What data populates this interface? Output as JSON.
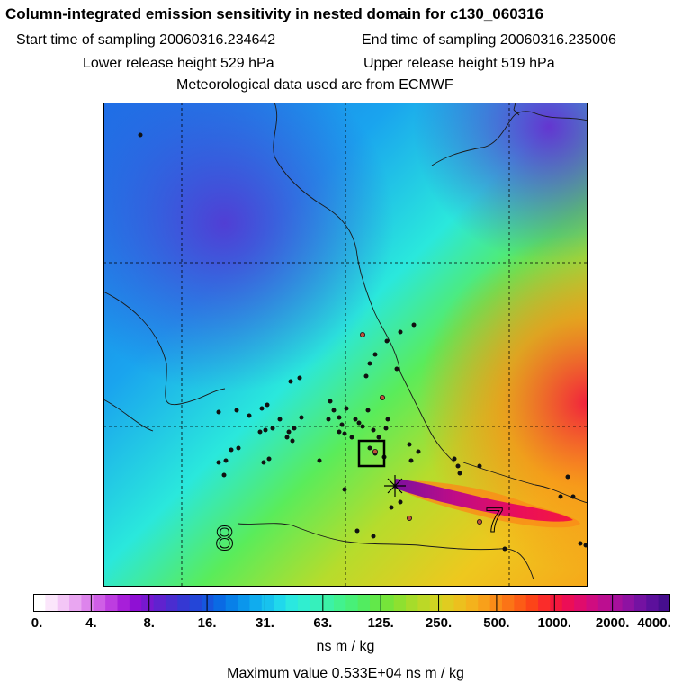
{
  "header": {
    "title": "Column-integrated emission sensitivity in nested domain for c130_060316",
    "start_label": "Start time of sampling 20060316.234642",
    "end_label": "End time of sampling 20060316.235006",
    "lower_label": "Lower release height  529 hPa",
    "upper_label": "Upper release height  519 hPa",
    "met_label": "Meteorological data used are from ECMWF"
  },
  "map": {
    "contour_labels": [
      "8",
      "7"
    ]
  },
  "colorbar": {
    "ticks": [
      "0.",
      "4.",
      "8.",
      "16.",
      "31.",
      "63.",
      "125.",
      "250.",
      "500.",
      "1000.",
      "2000.",
      "4000."
    ],
    "units": "ns m / kg",
    "max_value_text": "Maximum value  0.533E+04 ns m / kg",
    "colors": [
      "#ffffff",
      "#fbe6fb",
      "#f3c6f6",
      "#e9a6f1",
      "#dd84ec",
      "#cf5fe6",
      "#bd3de0",
      "#a71fd9",
      "#8f10d4",
      "#7718d0",
      "#6022cf",
      "#4a2dd0",
      "#3538d3",
      "#2446d8",
      "#1656de",
      "#0a6ae4",
      "#0880e8",
      "#0b96ec",
      "#10acee",
      "#18c2ee",
      "#20d8ec",
      "#2ae8e0",
      "#30eed0",
      "#36f0bc",
      "#3cf2a6",
      "#42f28e",
      "#48f078",
      "#52ec60",
      "#62e84a",
      "#76e43a",
      "#8ee030",
      "#a6dc2a",
      "#bcd826",
      "#d0d422",
      "#e0cc20",
      "#ecc01e",
      "#f4b21c",
      "#f8a01a",
      "#fa8c18",
      "#fb7416",
      "#fc5c16",
      "#fc4418",
      "#fa2c2a",
      "#f4183e",
      "#ec0e56",
      "#e00c6c",
      "#d00c80",
      "#bc0e90",
      "#a6109c",
      "#8e12a2",
      "#7412a2",
      "#5c109c",
      "#460e8e"
    ],
    "segments": 11
  }
}
